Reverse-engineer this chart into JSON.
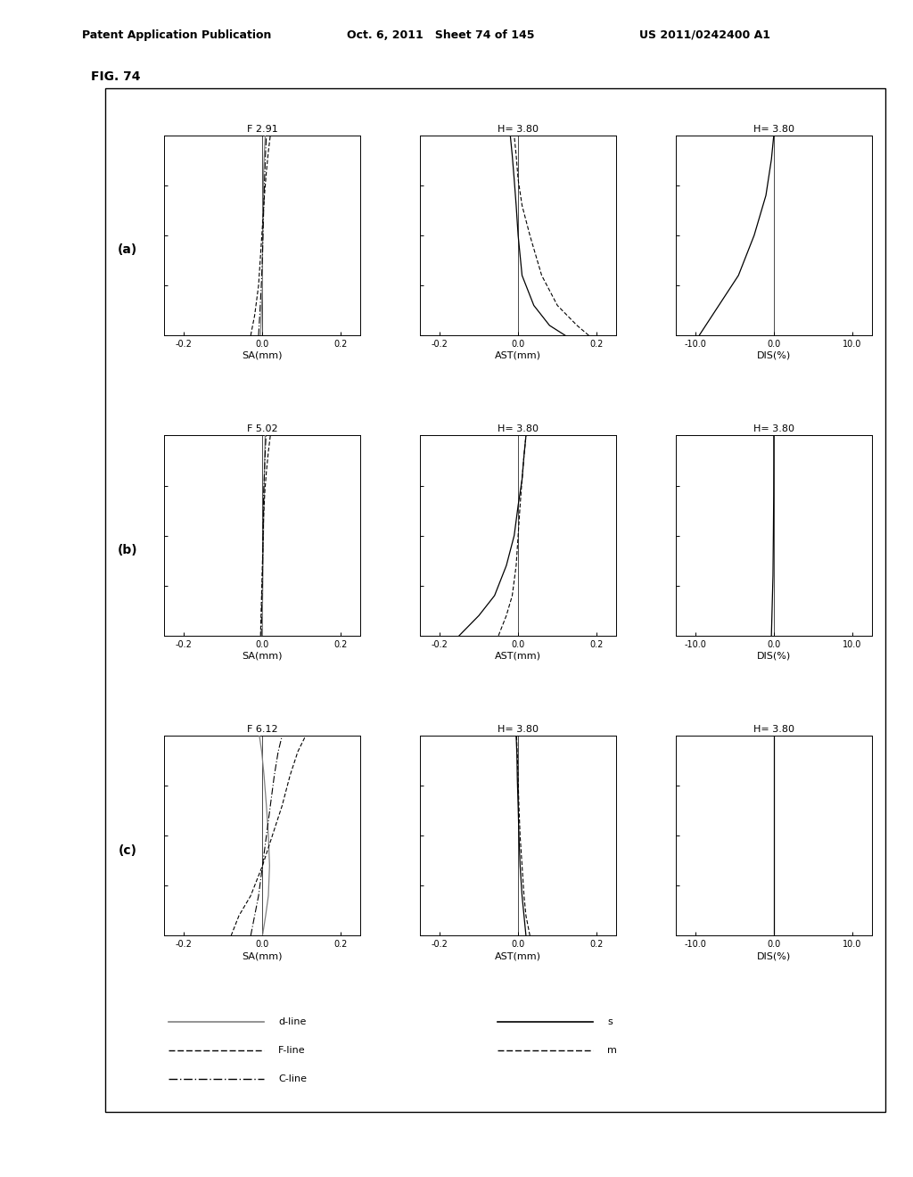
{
  "fig_label": "FIG. 74",
  "header_left": "Patent Application Publication",
  "header_mid": "Oct. 6, 2011   Sheet 74 of 145",
  "header_right": "US 2011/0242400 A1",
  "row_labels": [
    "(a)",
    "(b)",
    "(c)"
  ],
  "sa_titles": [
    "F 2.91",
    "F 5.02",
    "F 6.12"
  ],
  "ast_titles": [
    "H= 3.80",
    "H= 3.80",
    "H= 3.80"
  ],
  "dis_titles": [
    "H= 3.80",
    "H= 3.80",
    "H= 3.80"
  ],
  "xlim_sa": [
    -0.25,
    0.25
  ],
  "xlim_ast": [
    -0.25,
    0.25
  ],
  "xlim_dis": [
    -12.5,
    12.5
  ],
  "xlabel_sa": "SA(mm)",
  "xlabel_ast": "AST(mm)",
  "xlabel_dis": "DIS(%)",
  "xticks_sa": [
    -0.2,
    0.0,
    0.2
  ],
  "xticks_ast": [
    -0.2,
    0.0,
    0.2
  ],
  "xticks_dis": [
    -10.0,
    0.0,
    10.0
  ],
  "ytick_positions": [
    0.0,
    0.25,
    0.5,
    0.75,
    1.0
  ],
  "sa_a_d": [
    [
      -0.005,
      -0.003,
      0.0,
      0.0,
      0.001,
      0.002,
      0.003,
      0.005,
      0.007
    ],
    [
      0.0,
      0.1,
      0.25,
      0.4,
      0.55,
      0.7,
      0.82,
      0.92,
      1.0
    ]
  ],
  "sa_a_F": [
    [
      -0.03,
      -0.02,
      -0.01,
      -0.005,
      0.0,
      0.005,
      0.01,
      0.015,
      0.02
    ],
    [
      0.0,
      0.1,
      0.25,
      0.4,
      0.55,
      0.7,
      0.82,
      0.92,
      1.0
    ]
  ],
  "sa_a_C": [
    [
      -0.01,
      -0.007,
      -0.003,
      0.0,
      0.002,
      0.004,
      0.006,
      0.008,
      0.01
    ],
    [
      0.0,
      0.1,
      0.25,
      0.4,
      0.55,
      0.7,
      0.82,
      0.92,
      1.0
    ]
  ],
  "sa_b_d": [
    [
      0.0,
      0.0,
      0.001,
      0.002,
      0.003,
      0.004,
      0.005,
      0.006,
      0.007
    ],
    [
      0.0,
      0.15,
      0.3,
      0.45,
      0.6,
      0.72,
      0.82,
      0.92,
      1.0
    ]
  ],
  "sa_b_F": [
    [
      -0.005,
      -0.003,
      -0.001,
      0.001,
      0.003,
      0.006,
      0.01,
      0.015,
      0.02
    ],
    [
      0.0,
      0.15,
      0.3,
      0.45,
      0.6,
      0.72,
      0.82,
      0.92,
      1.0
    ]
  ],
  "sa_b_C": [
    [
      -0.003,
      -0.002,
      0.0,
      0.001,
      0.002,
      0.003,
      0.005,
      0.007,
      0.009
    ],
    [
      0.0,
      0.15,
      0.3,
      0.45,
      0.6,
      0.72,
      0.82,
      0.92,
      1.0
    ]
  ],
  "sa_c_d": [
    [
      0.0,
      0.008,
      0.015,
      0.018,
      0.015,
      0.01,
      0.004,
      -0.002,
      -0.008
    ],
    [
      0.0,
      0.1,
      0.2,
      0.35,
      0.5,
      0.65,
      0.8,
      0.92,
      1.0
    ]
  ],
  "sa_c_F": [
    [
      -0.08,
      -0.06,
      -0.03,
      0.0,
      0.025,
      0.05,
      0.07,
      0.09,
      0.11
    ],
    [
      0.0,
      0.1,
      0.2,
      0.35,
      0.5,
      0.65,
      0.8,
      0.92,
      1.0
    ]
  ],
  "sa_c_C": [
    [
      -0.03,
      -0.02,
      -0.01,
      0.0,
      0.01,
      0.02,
      0.03,
      0.04,
      0.05
    ],
    [
      0.0,
      0.1,
      0.2,
      0.35,
      0.5,
      0.65,
      0.8,
      0.92,
      1.0
    ]
  ],
  "ast_a_s": [
    [
      0.12,
      0.08,
      0.04,
      0.01,
      0.0,
      -0.005,
      -0.01,
      -0.015,
      -0.02
    ],
    [
      0.0,
      0.05,
      0.15,
      0.3,
      0.5,
      0.65,
      0.78,
      0.9,
      1.0
    ]
  ],
  "ast_a_m": [
    [
      0.18,
      0.15,
      0.1,
      0.06,
      0.03,
      0.01,
      0.0,
      -0.005,
      -0.01
    ],
    [
      0.0,
      0.05,
      0.15,
      0.3,
      0.5,
      0.65,
      0.78,
      0.9,
      1.0
    ]
  ],
  "ast_b_s": [
    [
      -0.15,
      -0.1,
      -0.06,
      -0.03,
      -0.01,
      0.0,
      0.01,
      0.015,
      0.02
    ],
    [
      0.0,
      0.1,
      0.2,
      0.35,
      0.5,
      0.65,
      0.78,
      0.9,
      1.0
    ]
  ],
  "ast_b_m": [
    [
      -0.05,
      -0.03,
      -0.015,
      -0.005,
      0.0,
      0.005,
      0.01,
      0.015,
      0.02
    ],
    [
      0.0,
      0.1,
      0.2,
      0.35,
      0.5,
      0.65,
      0.78,
      0.9,
      1.0
    ]
  ],
  "ast_c_s": [
    [
      0.02,
      0.015,
      0.01,
      0.005,
      0.002,
      0.0,
      -0.002,
      -0.003,
      -0.005
    ],
    [
      0.0,
      0.1,
      0.2,
      0.35,
      0.5,
      0.65,
      0.78,
      0.9,
      1.0
    ]
  ],
  "ast_c_m": [
    [
      0.03,
      0.02,
      0.015,
      0.01,
      0.005,
      0.002,
      0.0,
      -0.002,
      -0.004
    ],
    [
      0.0,
      0.1,
      0.2,
      0.35,
      0.5,
      0.65,
      0.78,
      0.9,
      1.0
    ]
  ],
  "dis_a_s": [
    [
      -9.5,
      -7.0,
      -4.5,
      -2.5,
      -1.0,
      -0.3,
      0.0
    ],
    [
      0.0,
      0.15,
      0.3,
      0.5,
      0.7,
      0.88,
      1.0
    ]
  ],
  "dis_b_s": [
    [
      -0.3,
      -0.2,
      -0.1,
      -0.05,
      -0.01,
      0.0,
      0.0
    ],
    [
      0.0,
      0.15,
      0.3,
      0.5,
      0.7,
      0.88,
      1.0
    ]
  ],
  "dis_c_s": [
    [
      0.0,
      0.0,
      0.0,
      0.0,
      0.0,
      0.0,
      0.0
    ],
    [
      0.0,
      0.15,
      0.3,
      0.5,
      0.7,
      0.88,
      1.0
    ]
  ]
}
